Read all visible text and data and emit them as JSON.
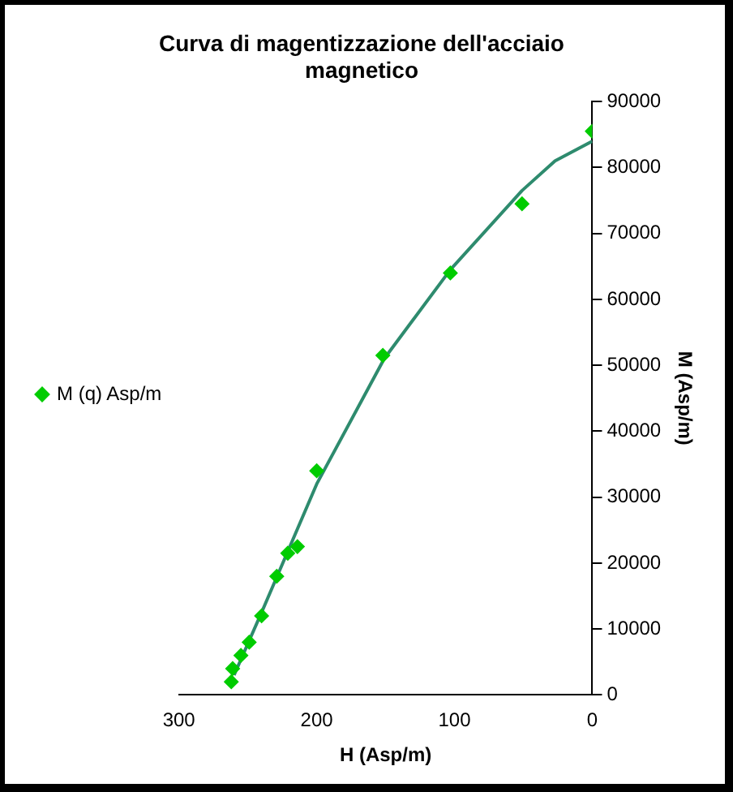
{
  "chart_data": {
    "type": "scatter",
    "title": "Curva di magentizzazione dell'acciaio magnetico",
    "xlabel": "H (Asp/m)",
    "ylabel": "M (Asp/m)",
    "xlim": [
      300,
      0
    ],
    "xticks": [
      0,
      100,
      200,
      300
    ],
    "ylim": [
      0,
      90000
    ],
    "yticks": [
      0,
      10000,
      20000,
      30000,
      40000,
      50000,
      60000,
      70000,
      80000,
      90000
    ],
    "grid": false,
    "legend": "left",
    "marker": "diamond",
    "series": [
      {
        "name": "M (q) Asp/m",
        "color": "#00cc00",
        "x": [
          0,
          51,
          103,
          152,
          200,
          214,
          221,
          229,
          240,
          249,
          255,
          261,
          262
        ],
        "values": [
          85500,
          74500,
          64000,
          51500,
          34000,
          22500,
          21500,
          18000,
          12000,
          8000,
          6000,
          4000,
          2000
        ]
      },
      {
        "type": "line",
        "color": "#2e8b6e",
        "line_style": "solid",
        "marker": "none",
        "x": [
          260,
          239,
          200,
          151,
          103,
          51,
          27,
          0
        ],
        "values": [
          3000,
          13000,
          32000,
          51000,
          64500,
          76500,
          81000,
          84000
        ]
      }
    ]
  }
}
